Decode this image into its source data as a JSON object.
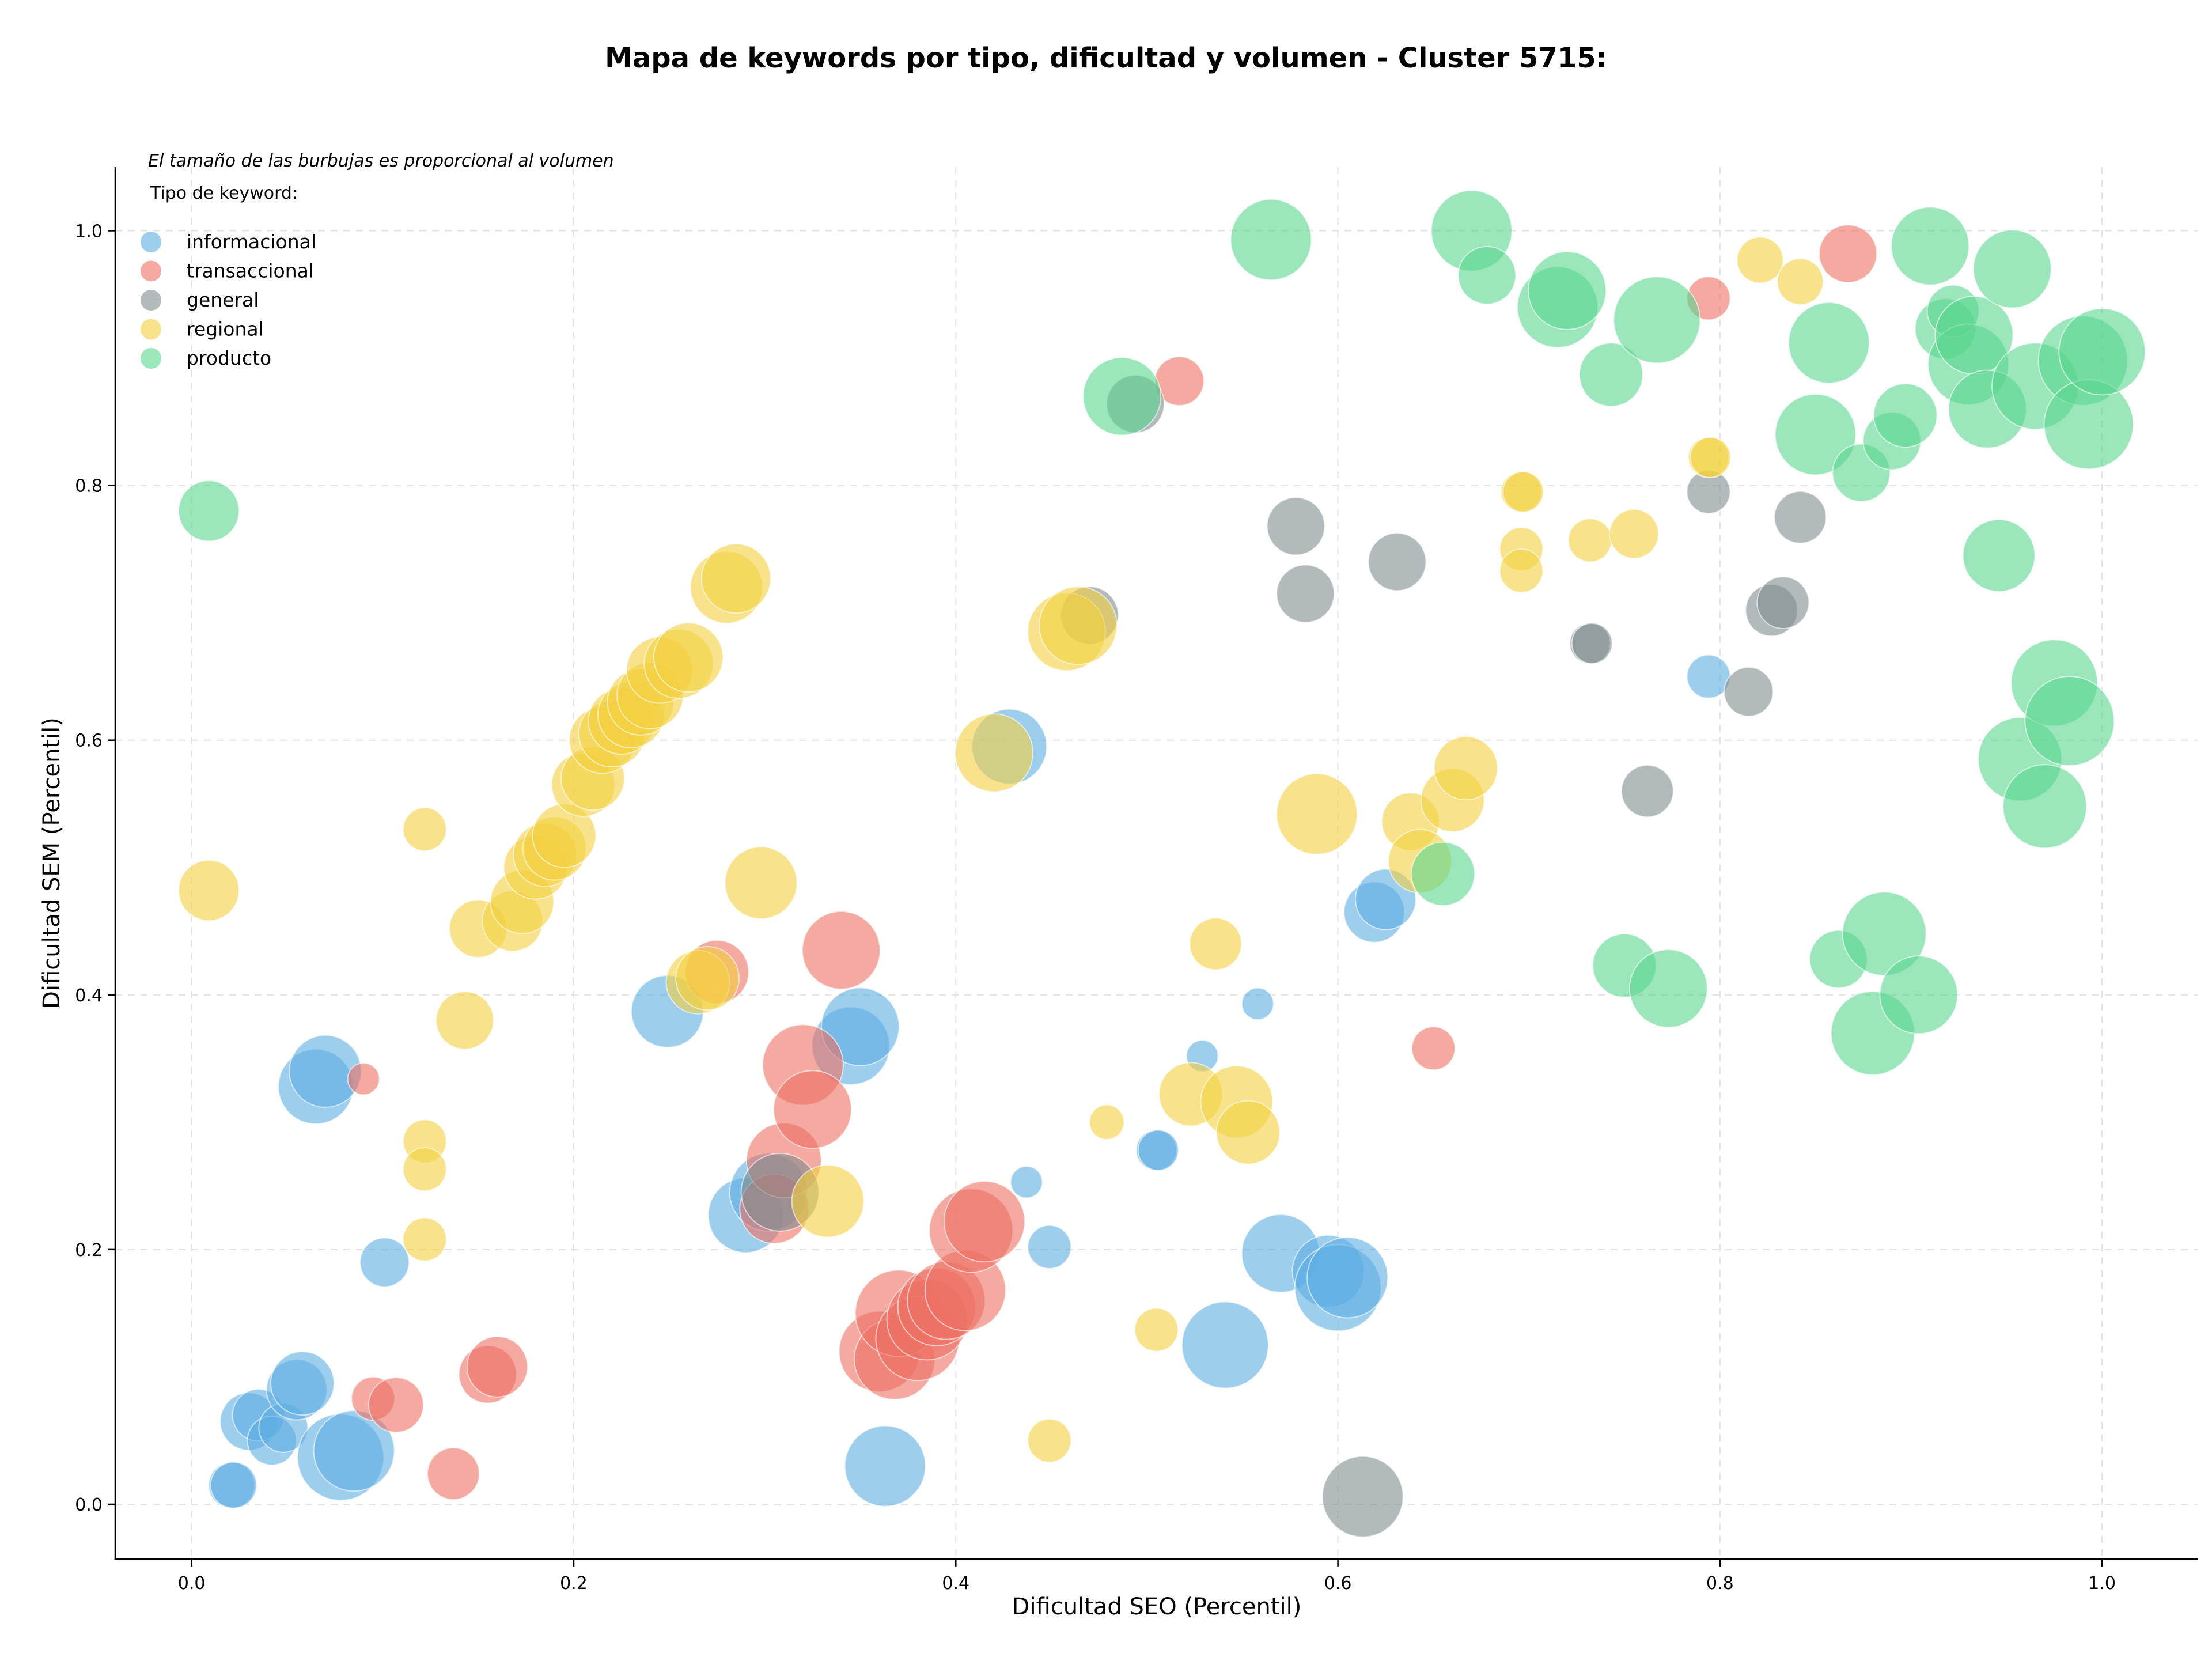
{
  "chart_data": {
    "type": "scatter",
    "title": "Mapa de keywords por tipo, dificultad y volumen - Cluster 5715:",
    "xlabel": "Dificultad SEO (Percentil)",
    "ylabel": "Dificultad SEM (Percentil)",
    "xlim": [
      -0.04,
      1.05
    ],
    "ylim": [
      -0.043,
      1.05
    ],
    "xticks": [
      0.0,
      0.2,
      0.4,
      0.6,
      0.8,
      1.0
    ],
    "yticks": [
      0.0,
      0.2,
      0.4,
      0.6,
      0.8,
      1.0
    ],
    "tick_format": 1,
    "grid": true,
    "note": "El tamaño de las burbujas es proporcional al volumen",
    "legend": {
      "title": "Tipo de keyword:",
      "placement": "top-left"
    },
    "series": [
      {
        "name": "informacional",
        "color": "#5DADE2",
        "points": [
          [
            0.021,
            0.015,
            16
          ],
          [
            0.022,
            0.015,
            16
          ],
          [
            0.03,
            0.065,
            20
          ],
          [
            0.035,
            0.07,
            18
          ],
          [
            0.042,
            0.05,
            17
          ],
          [
            0.048,
            0.06,
            17
          ],
          [
            0.055,
            0.09,
            21
          ],
          [
            0.058,
            0.095,
            22
          ],
          [
            0.065,
            0.328,
            26
          ],
          [
            0.07,
            0.34,
            25
          ],
          [
            0.078,
            0.037,
            30
          ],
          [
            0.085,
            0.042,
            28
          ],
          [
            0.101,
            0.19,
            17
          ],
          [
            0.249,
            0.387,
            25
          ],
          [
            0.29,
            0.227,
            26
          ],
          [
            0.302,
            0.245,
            27
          ],
          [
            0.345,
            0.36,
            27
          ],
          [
            0.35,
            0.375,
            27
          ],
          [
            0.363,
            0.03,
            28
          ],
          [
            0.428,
            0.595,
            26
          ],
          [
            0.437,
            0.253,
            11
          ],
          [
            0.449,
            0.202,
            15
          ],
          [
            0.505,
            0.278,
            14
          ],
          [
            0.506,
            0.278,
            14
          ],
          [
            0.529,
            0.352,
            11
          ],
          [
            0.541,
            0.125,
            30
          ],
          [
            0.558,
            0.393,
            11
          ],
          [
            0.57,
            0.197,
            27
          ],
          [
            0.595,
            0.183,
            25
          ],
          [
            0.6,
            0.17,
            30
          ],
          [
            0.605,
            0.178,
            28
          ],
          [
            0.619,
            0.465,
            21
          ],
          [
            0.625,
            0.475,
            21
          ],
          [
            0.794,
            0.65,
            15
          ]
        ]
      },
      {
        "name": "transaccional",
        "color": "#EC7063",
        "points": [
          [
            0.09,
            0.334,
            11
          ],
          [
            0.095,
            0.083,
            15
          ],
          [
            0.107,
            0.078,
            19
          ],
          [
            0.137,
            0.024,
            18
          ],
          [
            0.155,
            0.102,
            20
          ],
          [
            0.16,
            0.108,
            21
          ],
          [
            0.275,
            0.418,
            22
          ],
          [
            0.305,
            0.232,
            24
          ],
          [
            0.31,
            0.27,
            26
          ],
          [
            0.32,
            0.345,
            28
          ],
          [
            0.325,
            0.31,
            27
          ],
          [
            0.34,
            0.435,
            27
          ],
          [
            0.36,
            0.12,
            28
          ],
          [
            0.368,
            0.114,
            28
          ],
          [
            0.37,
            0.15,
            30
          ],
          [
            0.38,
            0.13,
            29
          ],
          [
            0.385,
            0.145,
            28
          ],
          [
            0.39,
            0.155,
            27
          ],
          [
            0.395,
            0.16,
            27
          ],
          [
            0.405,
            0.168,
            28
          ],
          [
            0.408,
            0.215,
            29
          ],
          [
            0.415,
            0.222,
            28
          ],
          [
            0.517,
            0.882,
            17
          ],
          [
            0.65,
            0.358,
            15
          ],
          [
            0.794,
            0.947,
            15
          ],
          [
            0.867,
            0.982,
            20
          ]
        ]
      },
      {
        "name": "general",
        "color": "#7F8C8D",
        "points": [
          [
            0.308,
            0.245,
            27
          ],
          [
            0.47,
            0.698,
            20
          ],
          [
            0.494,
            0.864,
            20
          ],
          [
            0.578,
            0.768,
            20
          ],
          [
            0.583,
            0.715,
            20
          ],
          [
            0.613,
            0.006,
            28
          ],
          [
            0.631,
            0.74,
            20
          ],
          [
            0.732,
            0.676,
            14
          ],
          [
            0.733,
            0.676,
            14
          ],
          [
            0.762,
            0.56,
            18
          ],
          [
            0.794,
            0.795,
            15
          ],
          [
            0.815,
            0.638,
            17
          ],
          [
            0.827,
            0.702,
            18
          ],
          [
            0.833,
            0.708,
            18
          ],
          [
            0.842,
            0.775,
            18
          ]
        ]
      },
      {
        "name": "regional",
        "color": "#F4D03F",
        "points": [
          [
            0.009,
            0.482,
            21
          ],
          [
            0.122,
            0.53,
            15
          ],
          [
            0.122,
            0.285,
            15
          ],
          [
            0.122,
            0.263,
            15
          ],
          [
            0.122,
            0.208,
            15
          ],
          [
            0.143,
            0.38,
            20
          ],
          [
            0.15,
            0.452,
            20
          ],
          [
            0.168,
            0.458,
            21
          ],
          [
            0.173,
            0.473,
            22
          ],
          [
            0.18,
            0.5,
            22
          ],
          [
            0.185,
            0.51,
            22
          ],
          [
            0.19,
            0.515,
            22
          ],
          [
            0.195,
            0.525,
            22
          ],
          [
            0.205,
            0.565,
            22
          ],
          [
            0.21,
            0.57,
            22
          ],
          [
            0.215,
            0.6,
            23
          ],
          [
            0.22,
            0.605,
            23
          ],
          [
            0.225,
            0.615,
            23
          ],
          [
            0.23,
            0.62,
            23
          ],
          [
            0.235,
            0.63,
            23
          ],
          [
            0.24,
            0.635,
            23
          ],
          [
            0.245,
            0.655,
            23
          ],
          [
            0.255,
            0.66,
            24
          ],
          [
            0.26,
            0.665,
            24
          ],
          [
            0.265,
            0.41,
            22
          ],
          [
            0.27,
            0.413,
            22
          ],
          [
            0.28,
            0.72,
            25
          ],
          [
            0.285,
            0.727,
            24
          ],
          [
            0.298,
            0.488,
            25
          ],
          [
            0.333,
            0.238,
            25
          ],
          [
            0.42,
            0.59,
            27
          ],
          [
            0.449,
            0.05,
            15
          ],
          [
            0.458,
            0.685,
            27
          ],
          [
            0.464,
            0.69,
            27
          ],
          [
            0.479,
            0.3,
            12
          ],
          [
            0.505,
            0.137,
            15
          ],
          [
            0.523,
            0.322,
            22
          ],
          [
            0.536,
            0.44,
            18
          ],
          [
            0.547,
            0.316,
            25
          ],
          [
            0.553,
            0.292,
            22
          ],
          [
            0.589,
            0.542,
            28
          ],
          [
            0.638,
            0.536,
            20
          ],
          [
            0.643,
            0.505,
            22
          ],
          [
            0.66,
            0.553,
            22
          ],
          [
            0.667,
            0.578,
            22
          ],
          [
            0.696,
            0.795,
            14
          ],
          [
            0.697,
            0.795,
            14
          ],
          [
            0.696,
            0.75,
            15
          ],
          [
            0.696,
            0.733,
            15
          ],
          [
            0.732,
            0.757,
            15
          ],
          [
            0.755,
            0.762,
            17
          ],
          [
            0.794,
            0.822,
            14
          ],
          [
            0.795,
            0.822,
            14
          ],
          [
            0.821,
            0.977,
            16
          ],
          [
            0.842,
            0.96,
            16
          ]
        ]
      },
      {
        "name": "producto",
        "color": "#58D68D",
        "points": [
          [
            0.009,
            0.78,
            21
          ],
          [
            0.487,
            0.87,
            27
          ],
          [
            0.565,
            0.993,
            28
          ],
          [
            0.67,
            1.0,
            28
          ],
          [
            0.678,
            0.965,
            20
          ],
          [
            0.715,
            0.94,
            28
          ],
          [
            0.72,
            0.953,
            27
          ],
          [
            0.743,
            0.887,
            22
          ],
          [
            0.767,
            0.93,
            30
          ],
          [
            0.75,
            0.423,
            22
          ],
          [
            0.773,
            0.405,
            27
          ],
          [
            0.655,
            0.495,
            22
          ],
          [
            0.85,
            0.84,
            28
          ],
          [
            0.857,
            0.912,
            28
          ],
          [
            0.862,
            0.428,
            20
          ],
          [
            0.874,
            0.81,
            20
          ],
          [
            0.88,
            0.37,
            29
          ],
          [
            0.886,
            0.448,
            29
          ],
          [
            0.89,
            0.835,
            20
          ],
          [
            0.897,
            0.855,
            22
          ],
          [
            0.904,
            0.4,
            27
          ],
          [
            0.91,
            0.988,
            27
          ],
          [
            0.918,
            0.923,
            21
          ],
          [
            0.922,
            0.937,
            18
          ],
          [
            0.93,
            0.895,
            28
          ],
          [
            0.933,
            0.918,
            27
          ],
          [
            0.94,
            0.86,
            27
          ],
          [
            0.946,
            0.745,
            25
          ],
          [
            0.953,
            0.97,
            27
          ],
          [
            0.957,
            0.585,
            29
          ],
          [
            0.965,
            0.878,
            30
          ],
          [
            0.97,
            0.548,
            29
          ],
          [
            0.975,
            0.645,
            30
          ],
          [
            0.983,
            0.615,
            31
          ],
          [
            0.99,
            0.898,
            31
          ],
          [
            0.993,
            0.848,
            31
          ],
          [
            1.0,
            0.905,
            30
          ]
        ]
      }
    ]
  }
}
